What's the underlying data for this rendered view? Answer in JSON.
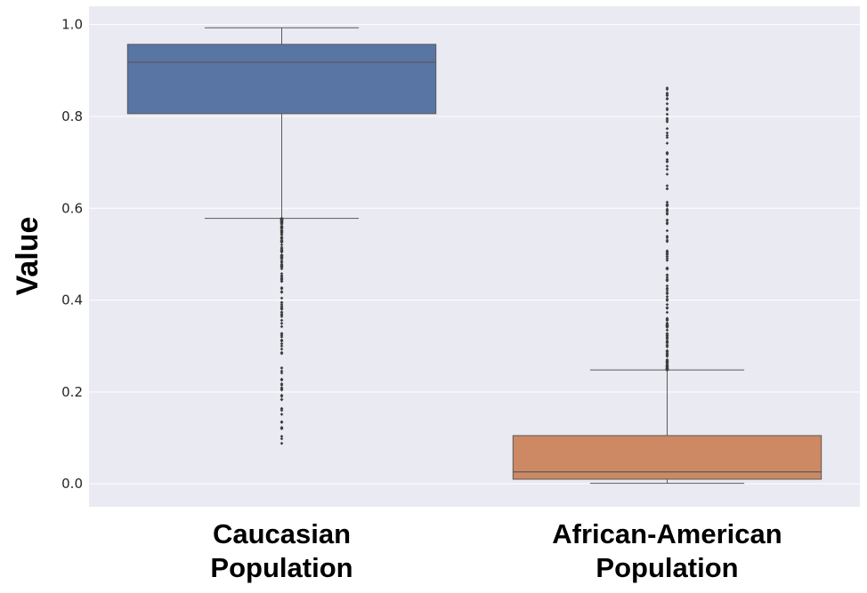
{
  "chart_data": {
    "type": "boxplot",
    "title": "",
    "xlabel": "",
    "ylabel": "Value",
    "ylim": [
      -0.05,
      1.04
    ],
    "yticks": [
      0.0,
      0.2,
      0.4,
      0.6,
      0.8,
      1.0
    ],
    "ytick_labels": [
      "0.0",
      "0.2",
      "0.4",
      "0.6",
      "0.8",
      "1.0"
    ],
    "grid": true,
    "categories": [
      [
        "Caucasian",
        "Population"
      ],
      [
        "African-American",
        "Population"
      ]
    ],
    "colors": [
      "#5875a4",
      "#cc8963"
    ],
    "boxes": [
      {
        "whisker_low": 0.578,
        "q1": 0.806,
        "median": 0.918,
        "q3": 0.957,
        "whisker_high": 0.993,
        "outlier_range": [
          0.088,
          0.578
        ]
      },
      {
        "whisker_low": 0.001,
        "q1": 0.01,
        "median": 0.026,
        "q3": 0.105,
        "whisker_high": 0.248,
        "outlier_range": [
          0.248,
          0.862
        ]
      }
    ]
  }
}
